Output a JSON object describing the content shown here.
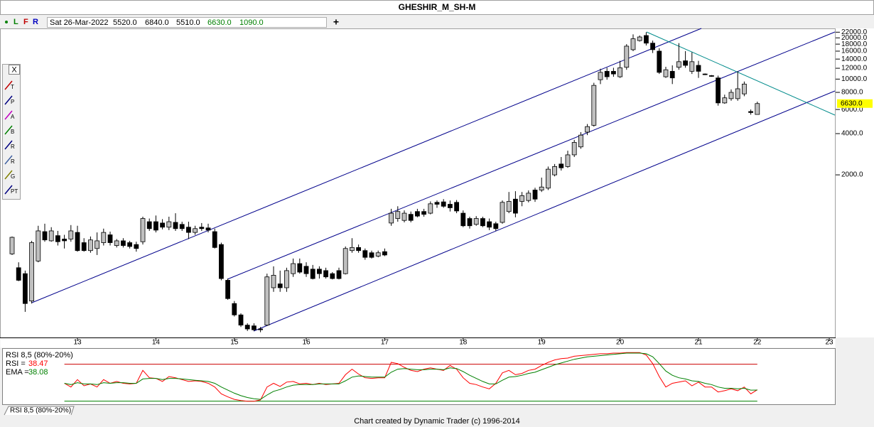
{
  "window": {
    "title": "GHESHIR_M_SH-M",
    "footer": "Chart created by Dynamic Trader  (c) 1996-2014"
  },
  "toolbar": {
    "buttons": [
      "L",
      "F",
      "R"
    ],
    "date": "Sat 26-Mar-2022",
    "fields": [
      "5520.0",
      "6840.0",
      "5510.0",
      "6630.0",
      "1090.0"
    ],
    "plus": "+"
  },
  "tools": {
    "close": "X",
    "labels": [
      "T",
      "P",
      "A",
      "B",
      "R",
      "R",
      "G",
      "PT"
    ]
  },
  "chart_data": [
    {
      "type": "candlestick",
      "log_scale": true,
      "up_color": "#c0c0c0",
      "down_color": "#000000",
      "categories": [
        null,
        null,
        null,
        null,
        null,
        null,
        null,
        null,
        null,
        null,
        "13",
        null,
        null,
        null,
        null,
        null,
        null,
        null,
        null,
        null,
        null,
        null,
        "14",
        null,
        null,
        null,
        null,
        null,
        null,
        null,
        null,
        null,
        null,
        null,
        "15",
        null,
        null,
        null,
        null,
        null,
        null,
        null,
        null,
        null,
        null,
        "16",
        null,
        null,
        null,
        null,
        null,
        null,
        null,
        null,
        null,
        null,
        null,
        "17",
        null,
        null,
        null,
        null,
        null,
        null,
        null,
        null,
        null,
        null,
        null,
        "18",
        null,
        null,
        null,
        null,
        null,
        null,
        null,
        null,
        null,
        null,
        null,
        "19",
        null,
        null,
        null,
        null,
        null,
        null,
        null,
        null,
        null,
        null,
        null,
        "20",
        null,
        null,
        null,
        null,
        null,
        null,
        null,
        null,
        null,
        null,
        null,
        "21",
        null,
        null,
        null,
        null,
        null,
        null,
        null,
        null,
        "22",
        null,
        null,
        null,
        null,
        null,
        null,
        null,
        null,
        null,
        null,
        "23"
      ],
      "open": [
        530,
        420,
        380,
        240,
        470,
        770,
        660,
        720,
        680,
        680,
        760,
        640,
        560,
        580,
        640,
        730,
        610,
        660,
        640,
        620,
        650,
        910,
        910,
        890,
        830,
        900,
        870,
        830,
        760,
        830,
        820,
        770,
        620,
        340,
        230,
        190,
        160,
        158,
        150,
        160,
        300,
        320,
        300,
        380,
        450,
        430,
        410,
        410,
        400,
        380,
        400,
        380,
        560,
        590,
        560,
        540,
        510,
        550,
        890,
        960,
        930,
        1030,
        1080,
        1080,
        1050,
        1260,
        1270,
        1220,
        1260,
        1050,
        960,
        870,
        960,
        910,
        880,
        900,
        1080,
        1330,
        1280,
        1300,
        1550,
        1550,
        1600,
        2000,
        2400,
        2300,
        2800,
        3200,
        4100,
        4600,
        9900,
        11400,
        11400,
        10400,
        12200,
        16400,
        19100,
        20800,
        18300,
        16000,
        10400,
        11400,
        12200,
        13600,
        11400,
        12600,
        10900,
        10600,
        10200,
        6700,
        7200,
        7200,
        7800,
        5800,
        5520,
        null,
        null,
        null,
        null,
        null,
        null,
        null,
        null,
        null,
        null,
        null
      ],
      "high": [
        710,
        460,
        400,
        660,
        850,
        880,
        830,
        780,
        730,
        860,
        850,
        690,
        710,
        760,
        810,
        770,
        680,
        690,
        660,
        650,
        990,
        960,
        1010,
        950,
        990,
        1050,
        910,
        910,
        850,
        890,
        880,
        810,
        640,
        350,
        240,
        195,
        165,
        165,
        155,
        380,
        430,
        400,
        420,
        490,
        490,
        460,
        440,
        430,
        420,
        390,
        420,
        600,
        690,
        620,
        580,
        560,
        560,
        580,
        1130,
        1180,
        1100,
        1080,
        1130,
        1130,
        1280,
        1300,
        1330,
        1300,
        1310,
        1100,
        990,
        1000,
        990,
        960,
        910,
        1300,
        1500,
        1520,
        1500,
        1540,
        1610,
        1910,
        2300,
        2400,
        2700,
        3000,
        3600,
        4100,
        4700,
        9400,
        11900,
        12100,
        12100,
        13600,
        18000,
        21200,
        20800,
        22000,
        19100,
        16800,
        12300,
        12600,
        18300,
        16000,
        15700,
        13600,
        11000,
        10700,
        10600,
        7700,
        8400,
        11400,
        9600,
        6000,
        6840,
        null,
        null,
        null,
        null,
        null,
        null,
        null,
        null,
        null,
        null,
        null
      ],
      "low": [
        520,
        335,
        200,
        230,
        460,
        650,
        650,
        610,
        580,
        650,
        550,
        550,
        540,
        520,
        610,
        610,
        590,
        590,
        580,
        550,
        620,
        780,
        760,
        800,
        790,
        780,
        780,
        680,
        730,
        780,
        760,
        580,
        340,
        245,
        185,
        155,
        145,
        145,
        142,
        158,
        280,
        280,
        280,
        360,
        380,
        360,
        345,
        350,
        350,
        345,
        345,
        375,
        540,
        540,
        480,
        490,
        500,
        510,
        850,
        910,
        900,
        900,
        980,
        990,
        1030,
        1150,
        1150,
        1080,
        1050,
        830,
        810,
        850,
        830,
        790,
        780,
        880,
        1050,
        980,
        1180,
        1260,
        1270,
        1500,
        1550,
        1950,
        2150,
        2250,
        2700,
        3100,
        3900,
        4500,
        9200,
        9900,
        10400,
        10200,
        11700,
        16000,
        18800,
        17600,
        15500,
        10900,
        10200,
        9200,
        11700,
        12100,
        10900,
        10200,
        10700,
        10400,
        6400,
        6600,
        6950,
        6950,
        7500,
        5500,
        5510,
        null,
        null,
        null,
        null,
        null,
        null,
        null,
        null,
        null,
        null,
        null
      ],
      "close": [
        700,
        340,
        230,
        640,
        780,
        670,
        780,
        650,
        660,
        780,
        560,
        560,
        670,
        660,
        760,
        640,
        660,
        610,
        600,
        580,
        960,
        810,
        790,
        830,
        910,
        810,
        810,
        760,
        810,
        810,
        790,
        590,
        350,
        250,
        190,
        160,
        150,
        148,
        148,
        360,
        370,
        300,
        400,
        450,
        390,
        380,
        350,
        380,
        360,
        350,
        350,
        580,
        590,
        560,
        500,
        500,
        540,
        520,
        1050,
        1080,
        1050,
        930,
        1000,
        1030,
        1230,
        1220,
        1180,
        1150,
        1090,
        850,
        850,
        960,
        850,
        830,
        810,
        1260,
        1280,
        1050,
        1410,
        1470,
        1330,
        1630,
        2200,
        2300,
        2250,
        2800,
        3450,
        3900,
        4500,
        9000,
        11200,
        10400,
        10900,
        12100,
        17400,
        19700,
        20300,
        18300,
        16400,
        11200,
        11700,
        10200,
        13400,
        12600,
        13400,
        11400,
        10800,
        10500,
        6700,
        7300,
        8000,
        8500,
        9200,
        5700,
        6630,
        null,
        null,
        null,
        null,
        null,
        null,
        null,
        null,
        null,
        null,
        null
      ],
      "ylim": [
        130,
        23440
      ],
      "yticks": [
        {
          "value": 2000,
          "label": "2000.0"
        },
        {
          "value": 4000,
          "label": "4000.0"
        },
        {
          "value": 6000,
          "label": "6000.0"
        },
        {
          "value": 8000,
          "label": "8000.0"
        },
        {
          "value": 10000,
          "label": "10000.0"
        },
        {
          "value": 12000,
          "label": "12000.0"
        },
        {
          "value": 14000,
          "label": "14000.0"
        },
        {
          "value": 16000,
          "label": "16000.0"
        },
        {
          "value": 18000,
          "label": "18000.0"
        },
        {
          "value": 20000,
          "label": "20000.0"
        },
        {
          "value": 22000,
          "label": "22000.0"
        }
      ],
      "price_marker": {
        "value": 6630,
        "label": "6630.0"
      }
    },
    {
      "type": "line",
      "title": "RSI 8,5 (80%-20%)",
      "ylim": [
        0,
        100
      ],
      "levels": [
        80,
        20
      ],
      "level_colors": [
        "#cc0000",
        "#008000"
      ],
      "series": [
        {
          "name": "RSI =",
          "color": "#ff0000",
          "values": [
            null,
            null,
            null,
            null,
            null,
            null,
            null,
            null,
            49,
            43,
            55,
            45,
            48,
            43,
            55,
            49,
            52,
            49,
            48,
            49,
            70,
            58,
            57,
            52,
            60,
            58,
            55,
            52,
            53,
            52,
            49,
            43,
            32,
            27,
            23,
            21,
            20,
            20,
            22,
            43,
            49,
            44,
            51,
            52,
            48,
            49,
            47,
            49,
            47,
            48,
            49,
            63,
            72,
            64,
            58,
            57,
            58,
            58,
            83,
            81,
            75,
            70,
            68,
            72,
            74,
            72,
            70,
            78,
            72,
            58,
            49,
            47,
            43,
            40,
            49,
            66,
            70,
            63,
            65,
            70,
            72,
            78,
            83,
            87,
            89,
            90,
            93,
            94,
            95,
            96,
            97,
            97,
            98,
            98,
            99,
            99,
            99,
            95,
            81,
            60,
            43,
            49,
            51,
            53,
            45,
            51,
            43,
            43,
            35,
            37,
            40,
            37,
            43,
            32,
            38.47,
            null,
            null,
            null,
            null,
            null,
            null,
            null,
            null,
            null,
            null,
            null
          ]
        },
        {
          "name": "EMA =",
          "color": "#008000",
          "values": [
            null,
            null,
            null,
            null,
            null,
            null,
            null,
            null,
            49,
            47,
            50,
            48,
            48,
            47,
            50,
            49,
            50,
            50,
            49,
            49,
            56,
            57,
            57,
            55,
            57,
            57,
            56,
            55,
            54,
            53,
            52,
            49,
            43,
            38,
            33,
            29,
            26,
            24,
            23,
            30,
            36,
            39,
            43,
            46,
            47,
            47,
            47,
            48,
            48,
            48,
            48,
            53,
            59,
            61,
            60,
            59,
            59,
            59,
            67,
            72,
            73,
            72,
            71,
            71,
            72,
            72,
            71,
            74,
            73,
            68,
            62,
            57,
            52,
            48,
            48,
            54,
            59,
            60,
            62,
            65,
            67,
            71,
            75,
            79,
            82,
            85,
            88,
            90,
            92,
            93,
            94,
            95,
            96,
            97,
            98,
            98,
            98,
            97,
            92,
            81,
            69,
            62,
            58,
            56,
            53,
            52,
            49,
            47,
            43,
            41,
            41,
            40,
            41,
            38,
            38.08,
            null,
            null,
            null,
            null,
            null,
            null,
            null,
            null,
            null,
            null,
            null
          ]
        }
      ]
    }
  ]
}
